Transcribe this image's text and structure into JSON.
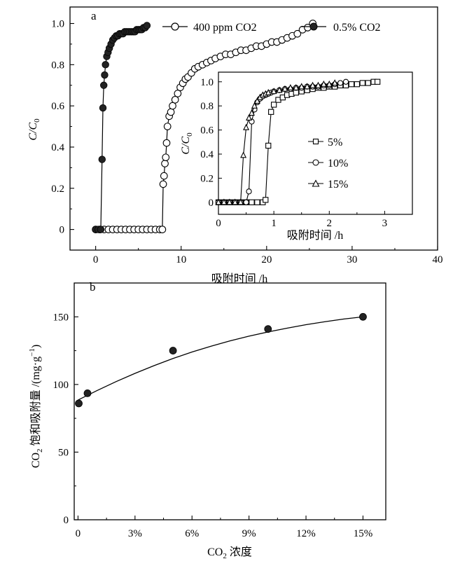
{
  "chart_data": [
    {
      "panel": "a",
      "type": "scatter",
      "xlabel": "吸附时间 /h",
      "ylabel": "C/C0",
      "xlim": [
        -3,
        40
      ],
      "ylim": [
        -0.1,
        1.08
      ],
      "xticks": [
        "0",
        "10",
        "20",
        "30",
        "40"
      ],
      "yticks": [
        "0",
        "0.2",
        "0.4",
        "0.6",
        "0.8",
        "1.0"
      ],
      "legend_position": "top-right",
      "series": [
        {
          "name": "400 ppm CO2",
          "marker": "open-circle",
          "x": [
            0,
            0.5,
            1,
            1.5,
            2,
            2.5,
            3,
            3.5,
            4,
            4.5,
            5,
            5.5,
            6,
            6.5,
            7,
            7.5,
            7.8,
            7.9,
            8.0,
            8.1,
            8.2,
            8.3,
            8.4,
            8.6,
            8.8,
            9.0,
            9.3,
            9.6,
            9.9,
            10.2,
            10.5,
            10.8,
            11.2,
            11.6,
            12.0,
            12.5,
            13.0,
            13.5,
            14.0,
            14.6,
            15.2,
            15.8,
            16.4,
            17.0,
            17.6,
            18.2,
            18.8,
            19.4,
            20.0,
            20.6,
            21.2,
            21.8,
            22.4,
            23.0,
            23.6,
            24.2,
            24.8,
            25.4
          ],
          "y": [
            0,
            0,
            0,
            0,
            0,
            0,
            0,
            0,
            0,
            0,
            0,
            0,
            0,
            0,
            0,
            0,
            0,
            0.22,
            0.26,
            0.32,
            0.35,
            0.42,
            0.5,
            0.55,
            0.57,
            0.6,
            0.63,
            0.66,
            0.69,
            0.71,
            0.73,
            0.74,
            0.76,
            0.78,
            0.79,
            0.8,
            0.81,
            0.82,
            0.83,
            0.84,
            0.85,
            0.85,
            0.86,
            0.87,
            0.87,
            0.88,
            0.89,
            0.89,
            0.9,
            0.91,
            0.91,
            0.92,
            0.93,
            0.94,
            0.95,
            0.97,
            0.98,
            1.0
          ]
        },
        {
          "name": "0.5% CO2",
          "marker": "filled-circle",
          "x": [
            0,
            0.3,
            0.6,
            0.75,
            0.85,
            0.95,
            1.05,
            1.15,
            1.3,
            1.45,
            1.6,
            1.8,
            2.0,
            2.2,
            2.4,
            2.6,
            2.8,
            3.0,
            3.2,
            3.4,
            3.6,
            3.8,
            4.0,
            4.2,
            4.4,
            4.6,
            4.8,
            5.0,
            5.2,
            5.4,
            5.6,
            5.8,
            6.0
          ],
          "y": [
            0,
            0,
            0,
            0.34,
            0.59,
            0.7,
            0.75,
            0.8,
            0.84,
            0.86,
            0.88,
            0.9,
            0.92,
            0.93,
            0.94,
            0.94,
            0.95,
            0.95,
            0.95,
            0.96,
            0.96,
            0.96,
            0.96,
            0.96,
            0.96,
            0.96,
            0.97,
            0.97,
            0.97,
            0.97,
            0.98,
            0.98,
            0.99
          ]
        }
      ],
      "inset": {
        "xlabel": "吸附时间 /h",
        "ylabel": "C/C0",
        "xlim": [
          0,
          3.5
        ],
        "ylim": [
          -0.1,
          1.08
        ],
        "xticks": [
          "0",
          "1",
          "2",
          "3"
        ],
        "yticks": [
          "0",
          "0.2",
          "0.4",
          "0.6",
          "0.8",
          "1.0"
        ],
        "series": [
          {
            "name": "5%",
            "marker": "open-square",
            "x": [
              0.0,
              0.1,
              0.2,
              0.3,
              0.4,
              0.5,
              0.6,
              0.7,
              0.8,
              0.85,
              0.9,
              0.95,
              1.0,
              1.08,
              1.16,
              1.24,
              1.32,
              1.4,
              1.5,
              1.6,
              1.7,
              1.8,
              1.9,
              2.0,
              2.1,
              2.2,
              2.3,
              2.4,
              2.5,
              2.6,
              2.7,
              2.8,
              2.87
            ],
            "y": [
              0,
              0,
              0,
              0,
              0,
              0,
              0,
              0,
              0,
              0.02,
              0.47,
              0.75,
              0.81,
              0.85,
              0.87,
              0.89,
              0.9,
              0.91,
              0.92,
              0.93,
              0.94,
              0.95,
              0.95,
              0.96,
              0.96,
              0.97,
              0.97,
              0.98,
              0.98,
              0.99,
              0.99,
              1.0,
              1.0
            ]
          },
          {
            "name": "10%",
            "marker": "open-circle",
            "x": [
              0.0,
              0.1,
              0.2,
              0.3,
              0.4,
              0.5,
              0.55,
              0.6,
              0.65,
              0.7,
              0.75,
              0.8,
              0.85,
              0.9,
              0.95,
              1.0,
              1.1,
              1.2,
              1.3,
              1.4,
              1.5,
              1.6,
              1.7,
              1.8,
              1.9,
              2.0,
              2.1,
              2.2,
              2.3
            ],
            "y": [
              0,
              0,
              0,
              0,
              0,
              0,
              0.09,
              0.67,
              0.77,
              0.83,
              0.86,
              0.88,
              0.89,
              0.9,
              0.91,
              0.92,
              0.93,
              0.94,
              0.94,
              0.95,
              0.95,
              0.96,
              0.96,
              0.96,
              0.97,
              0.97,
              0.98,
              0.99,
              1.0
            ]
          },
          {
            "name": "15%",
            "marker": "open-triangle",
            "x": [
              0.0,
              0.1,
              0.2,
              0.3,
              0.4,
              0.45,
              0.5,
              0.55,
              0.6,
              0.65,
              0.7,
              0.75,
              0.8,
              0.85,
              0.9,
              1.0,
              1.1,
              1.2,
              1.3,
              1.4,
              1.5,
              1.6,
              1.7,
              1.8,
              1.9,
              2.0,
              2.1
            ],
            "y": [
              0,
              0,
              0,
              0,
              0,
              0.39,
              0.62,
              0.7,
              0.74,
              0.8,
              0.84,
              0.87,
              0.89,
              0.9,
              0.91,
              0.92,
              0.93,
              0.94,
              0.95,
              0.95,
              0.96,
              0.96,
              0.97,
              0.97,
              0.98,
              0.98,
              0.99
            ]
          }
        ]
      }
    },
    {
      "panel": "b",
      "type": "scatter",
      "xlabel": "CO2 浓度",
      "ylabel": "CO2 饱和吸附量 /(mg·g-1)",
      "xlim": [
        -0.2,
        16.2
      ],
      "ylim": [
        0,
        175
      ],
      "xticks": [
        "0",
        "3%",
        "6%",
        "9%",
        "12%",
        "15%"
      ],
      "yticks": [
        "0",
        "50",
        "100",
        "150"
      ],
      "series": [
        {
          "marker": "filled-circle",
          "x": [
            0.04,
            0.5,
            5,
            10,
            15
          ],
          "y": [
            86,
            93.5,
            125,
            141,
            150
          ]
        }
      ],
      "fit_curve": {
        "x": [
          0,
          1,
          2,
          3,
          4,
          5,
          6,
          7,
          8,
          9,
          10,
          11,
          12,
          13,
          14,
          15
        ],
        "y": [
          88.5,
          95.5,
          102.1,
          108.2,
          113.9,
          119.2,
          124.0,
          128.3,
          132.2,
          135.7,
          138.8,
          141.6,
          144.2,
          146.4,
          148.4,
          150.0
        ]
      }
    }
  ]
}
